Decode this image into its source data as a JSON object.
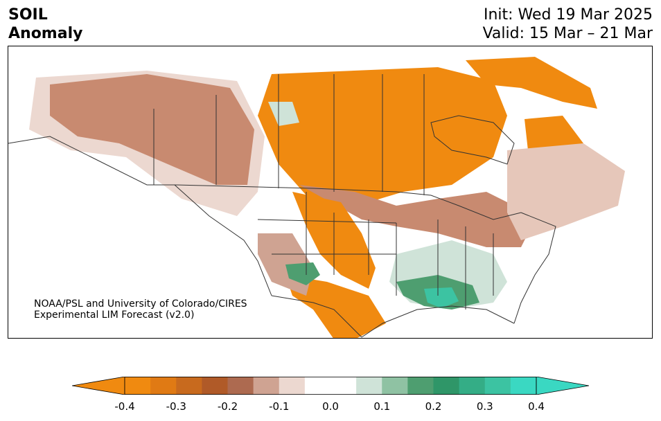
{
  "header": {
    "title_line1": "SOIL",
    "title_line2": "Anomaly",
    "init_text": "Init: Wed 19 Mar 2025",
    "valid_text": "Valid: 15 Mar – 21 Mar"
  },
  "credit": {
    "line1": "NOAA/PSL and University of Colorado/CIRES",
    "line2": "Experimental LIM Forecast (v2.0)"
  },
  "colorbar": {
    "tick_labels": [
      "-0.4",
      "-0.3",
      "-0.2",
      "-0.1",
      "0.0",
      "0.1",
      "0.2",
      "0.3",
      "0.4"
    ],
    "bins": [
      {
        "value": -0.375,
        "color": "#f08a10"
      },
      {
        "value": -0.325,
        "color": "#e07a14"
      },
      {
        "value": -0.275,
        "color": "#c86a1e"
      },
      {
        "value": -0.225,
        "color": "#b05a28"
      },
      {
        "value": -0.175,
        "color": "#ad6a50"
      },
      {
        "value": -0.125,
        "color": "#cfa392"
      },
      {
        "value": -0.075,
        "color": "#ecd8d0"
      },
      {
        "value": -0.025,
        "color": "#ffffff"
      },
      {
        "value": 0.025,
        "color": "#ffffff"
      },
      {
        "value": 0.075,
        "color": "#cfe3d8"
      },
      {
        "value": 0.125,
        "color": "#8fc2a3"
      },
      {
        "value": 0.175,
        "color": "#4e9e70"
      },
      {
        "value": 0.225,
        "color": "#2f9668"
      },
      {
        "value": 0.275,
        "color": "#34ad86"
      },
      {
        "value": 0.325,
        "color": "#3cc3a2"
      },
      {
        "value": 0.375,
        "color": "#3ad8c2"
      }
    ],
    "extend_low_color": "#f08a10",
    "extend_high_color": "#3ad8c2"
  }
}
